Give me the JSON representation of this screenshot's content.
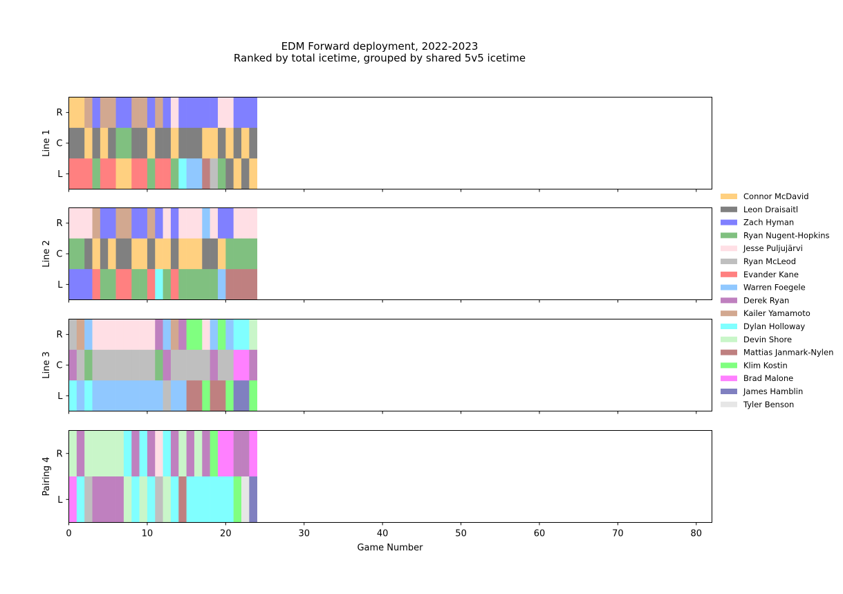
{
  "chart_data": {
    "type": "heatmap",
    "title": "EDM Forward deployment, 2022-2023",
    "subtitle": "Ranked by total icetime, grouped by shared 5v5 icetime",
    "xlabel": "Game Number",
    "xlim": [
      0,
      82
    ],
    "xticks": [
      0,
      10,
      20,
      30,
      40,
      50,
      60,
      70,
      80
    ],
    "legend_position": "right",
    "players": [
      {
        "code": "MD",
        "name": "Connor McDavid",
        "color": "#ffd080"
      },
      {
        "code": "LD",
        "name": "Leon Draisaitl",
        "color": "#808080"
      },
      {
        "code": "ZH",
        "name": "Zach Hyman",
        "color": "#8080ff"
      },
      {
        "code": "RNH",
        "name": "Ryan Nugent-Hopkins",
        "color": "#80c080"
      },
      {
        "code": "JP",
        "name": "Jesse Puljujärvi",
        "color": "#ffdfe5"
      },
      {
        "code": "RM",
        "name": "Ryan McLeod",
        "color": "#bfbfbf"
      },
      {
        "code": "EK",
        "name": "Evander Kane",
        "color": "#ff8080"
      },
      {
        "code": "WF",
        "name": "Warren Foegele",
        "color": "#90c8ff"
      },
      {
        "code": "DR",
        "name": "Derek Ryan",
        "color": "#bf80bf"
      },
      {
        "code": "KY",
        "name": "Kailer Yamamoto",
        "color": "#d2a890"
      },
      {
        "code": "DH",
        "name": "Dylan Holloway",
        "color": "#80ffff"
      },
      {
        "code": "DS",
        "name": "Devin Shore",
        "color": "#c9f6c9"
      },
      {
        "code": "MJN",
        "name": "Mattias Janmark-Nylen",
        "color": "#bf8080"
      },
      {
        "code": "KK",
        "name": "Klim Kostin",
        "color": "#80ff80"
      },
      {
        "code": "BM",
        "name": "Brad Malone",
        "color": "#ff80ff"
      },
      {
        "code": "JH",
        "name": "James Hamblin",
        "color": "#8080c0"
      },
      {
        "code": "TB",
        "name": "Tyler Benson",
        "color": "#e6e6e6"
      }
    ],
    "panels": [
      {
        "label": "Line 1",
        "rows": [
          {
            "pos": "R",
            "games": [
              "MD",
              "MD",
              "KY",
              "ZH",
              "KY",
              "KY",
              "ZH",
              "ZH",
              "KY",
              "KY",
              "ZH",
              "KY",
              "ZH",
              "JP",
              "ZH",
              "ZH",
              "ZH",
              "ZH",
              "ZH",
              "JP",
              "JP",
              "ZH",
              "ZH",
              "ZH"
            ]
          },
          {
            "pos": "C",
            "games": [
              "LD",
              "LD",
              "MD",
              "LD",
              "MD",
              "LD",
              "RNH",
              "RNH",
              "LD",
              "LD",
              "MD",
              "LD",
              "LD",
              "MD",
              "LD",
              "LD",
              "LD",
              "MD",
              "MD",
              "LD",
              "MD",
              "LD",
              "MD",
              "LD"
            ]
          },
          {
            "pos": "L",
            "games": [
              "EK",
              "EK",
              "EK",
              "RNH",
              "EK",
              "EK",
              "MD",
              "MD",
              "EK",
              "EK",
              "RNH",
              "EK",
              "EK",
              "RNH",
              "DH",
              "WF",
              "WF",
              "MJN",
              "RM",
              "RNH",
              "LD",
              "MD",
              "LD",
              "MD"
            ]
          }
        ]
      },
      {
        "label": "Line 2",
        "rows": [
          {
            "pos": "R",
            "games": [
              "JP",
              "JP",
              "JP",
              "KY",
              "ZH",
              "ZH",
              "KY",
              "KY",
              "ZH",
              "ZH",
              "KY",
              "ZH",
              "JP",
              "ZH",
              "JP",
              "JP",
              "JP",
              "WF",
              "JP",
              "ZH",
              "ZH",
              "JP",
              "JP",
              "JP"
            ]
          },
          {
            "pos": "C",
            "games": [
              "RNH",
              "RNH",
              "LD",
              "MD",
              "LD",
              "MD",
              "LD",
              "LD",
              "MD",
              "MD",
              "LD",
              "MD",
              "MD",
              "LD",
              "MD",
              "MD",
              "MD",
              "LD",
              "LD",
              "MD",
              "RNH",
              "RNH",
              "RNH",
              "RNH"
            ]
          },
          {
            "pos": "L",
            "games": [
              "ZH",
              "ZH",
              "ZH",
              "EK",
              "RNH",
              "RNH",
              "EK",
              "EK",
              "RNH",
              "RNH",
              "EK",
              "DH",
              "RNH",
              "EK",
              "RNH",
              "RNH",
              "RNH",
              "RNH",
              "RNH",
              "WF",
              "MJN",
              "MJN",
              "MJN",
              "MJN"
            ]
          }
        ]
      },
      {
        "label": "Line 3",
        "rows": [
          {
            "pos": "R",
            "games": [
              "RM",
              "KY",
              "WF",
              "JP",
              "JP",
              "JP",
              "JP",
              "JP",
              "JP",
              "JP",
              "JP",
              "DR",
              "WF",
              "KY",
              "DR",
              "KK",
              "KK",
              "JP",
              "WF",
              "KK",
              "WF",
              "DH",
              "DH",
              "DS"
            ]
          },
          {
            "pos": "C",
            "games": [
              "DR",
              "RM",
              "RNH",
              "RM",
              "RM",
              "RM",
              "RM",
              "RM",
              "RM",
              "RM",
              "RM",
              "RNH",
              "DR",
              "RM",
              "RM",
              "RM",
              "RM",
              "RM",
              "DR",
              "RM",
              "RM",
              "BM",
              "BM",
              "DR"
            ]
          },
          {
            "pos": "L",
            "games": [
              "DH",
              "WF",
              "DH",
              "WF",
              "WF",
              "WF",
              "WF",
              "WF",
              "WF",
              "WF",
              "WF",
              "WF",
              "RM",
              "WF",
              "WF",
              "MJN",
              "MJN",
              "KK",
              "MJN",
              "MJN",
              "KK",
              "JH",
              "JH",
              "KK"
            ]
          }
        ]
      },
      {
        "label": "Pairing 4",
        "rows": [
          {
            "pos": "R",
            "games": [
              "DS",
              "DR",
              "DS",
              "DS",
              "DS",
              "DS",
              "DS",
              "DH",
              "DR",
              "DH",
              "DR",
              "JP",
              "DH",
              "DR",
              "DS",
              "DR",
              "DS",
              "DR",
              "KK",
              "BM",
              "BM",
              "DR",
              "DR",
              "BM"
            ]
          },
          {
            "pos": "L",
            "games": [
              "BM",
              "DH",
              "RM",
              "DR",
              "DR",
              "DR",
              "DR",
              "DS",
              "DH",
              "DS",
              "DH",
              "RM",
              "DS",
              "DH",
              "MJN",
              "DH",
              "DH",
              "DH",
              "DH",
              "DH",
              "DH",
              "KK",
              "TB",
              "JH"
            ]
          }
        ]
      }
    ]
  }
}
